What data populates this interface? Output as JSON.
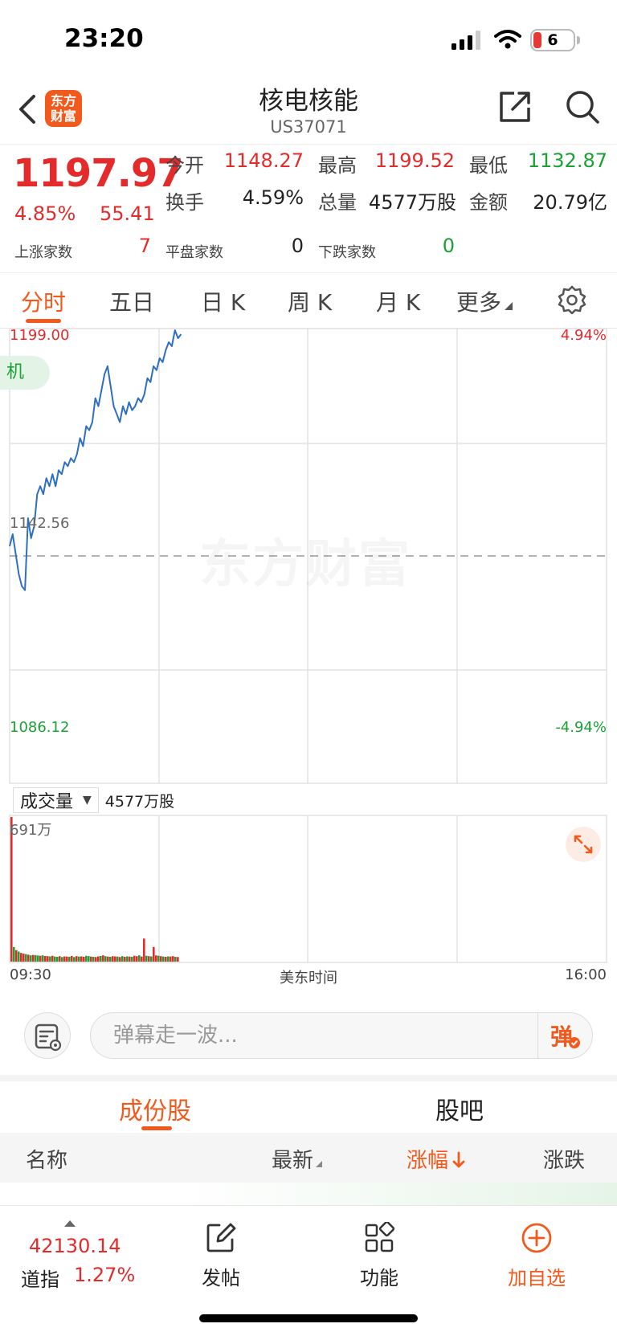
{
  "status_bar": {
    "time": "23:20",
    "battery": "6"
  },
  "header": {
    "title": "核电核能",
    "code": "US37071",
    "logo_text": "东方财富"
  },
  "quote": {
    "price": "1197.97",
    "change_pct": "4.85%",
    "change": "55.41",
    "open_label": "今开",
    "open": "1148.27",
    "high_label": "最高",
    "high": "1199.52",
    "low_label": "最低",
    "low": "1132.87",
    "turnover_label": "换手",
    "turnover": "4.59%",
    "volume_label": "总量",
    "volume": "4577万股",
    "amount_label": "金额",
    "amount": "20.79亿",
    "up_label": "上涨家数",
    "up": "7",
    "flat_label": "平盘家数",
    "flat": "0",
    "down_label": "下跌家数",
    "down": "0"
  },
  "tabs": [
    {
      "label": "分时",
      "active": true
    },
    {
      "label": "五日"
    },
    {
      "label": "日 K"
    },
    {
      "label": "周 K"
    },
    {
      "label": "月 K"
    },
    {
      "label": "更多"
    }
  ],
  "chart_data": {
    "type": "line",
    "x_start_label": "09:30",
    "x_center_label": "美东时间",
    "x_end_label": "16:00",
    "y_top_label": "1199.00",
    "y_mid_label": "1142.56",
    "y_bottom_label": "1086.12",
    "pct_top_label": "4.94%",
    "pct_bottom_label": "-4.94%",
    "ylim": [
      1086.12,
      1199.0
    ],
    "baseline": 1142.56,
    "session_minutes": 390,
    "grid": true,
    "pill_text": "机",
    "watermark": "东方财富",
    "series": [
      {
        "x": [
          0,
          2,
          4,
          6,
          8,
          10,
          12,
          14,
          16,
          18,
          20,
          22,
          24,
          26,
          28,
          30,
          32,
          34,
          36,
          38,
          40,
          42,
          44,
          46,
          48,
          50,
          52,
          54,
          56,
          58,
          60,
          62,
          64,
          66,
          68,
          70,
          72,
          74,
          76,
          78,
          80,
          82,
          84,
          86,
          88,
          90,
          92,
          94,
          96,
          98,
          100,
          102,
          104,
          106,
          108,
          110,
          112
        ],
        "values": [
          1145,
          1148,
          1143,
          1138,
          1135,
          1134,
          1152,
          1147,
          1150,
          1158,
          1160,
          1158,
          1162,
          1160,
          1163,
          1160,
          1164,
          1163,
          1166,
          1165,
          1167,
          1166,
          1168,
          1172,
          1170,
          1175,
          1174,
          1176,
          1182,
          1180,
          1184,
          1188,
          1190,
          1185,
          1180,
          1178,
          1176,
          1180,
          1178,
          1181,
          1179,
          1180,
          1182,
          1181,
          1183,
          1187,
          1186,
          1190,
          1189,
          1192,
          1191,
          1194,
          1196,
          1195,
          1199,
          1197,
          1198
        ]
      }
    ],
    "volume": {
      "type": "bar",
      "title": "成交量",
      "total_label": "4577万股",
      "max_label": "691万",
      "ylim": [
        0,
        6910000
      ],
      "values": [
        6910000,
        700000,
        550000,
        480000,
        420000,
        380000,
        360000,
        330000,
        300000,
        320000,
        310000,
        290000,
        280000,
        300000,
        270000,
        260000,
        250000,
        280000,
        240000,
        230000,
        260000,
        220000,
        250000,
        240000,
        230000,
        270000,
        220000,
        260000,
        240000,
        250000,
        230000,
        280000,
        260000,
        240000,
        230000,
        220000,
        250000,
        270000,
        300000,
        260000,
        240000,
        230000,
        260000,
        250000,
        240000,
        220000,
        260000,
        230000,
        250000,
        240000,
        230000,
        280000,
        260000,
        300000,
        240000,
        1100000,
        280000,
        260000,
        250000,
        700000,
        300000,
        280000,
        260000,
        240000,
        230000,
        250000,
        240000,
        260000,
        230000,
        220000
      ],
      "colors": [
        "red",
        "green",
        "red",
        "green",
        "red",
        "red",
        "green",
        "red",
        "green",
        "red",
        "green",
        "green",
        "red",
        "green",
        "red",
        "red",
        "green",
        "red",
        "green",
        "green",
        "red",
        "green",
        "red",
        "red",
        "green",
        "red",
        "green",
        "red",
        "green",
        "red",
        "red",
        "green",
        "green",
        "red",
        "green",
        "red",
        "red",
        "green",
        "red",
        "green",
        "red",
        "green",
        "red",
        "red",
        "green",
        "red",
        "green",
        "red",
        "green",
        "red",
        "green",
        "red",
        "red",
        "green",
        "red",
        "red",
        "green",
        "red",
        "green",
        "red",
        "red",
        "green",
        "red",
        "green",
        "red",
        "green",
        "red",
        "red",
        "green",
        "red"
      ]
    }
  },
  "danmu": {
    "placeholder": "弹幕走一波...",
    "button": "弹"
  },
  "subtabs": [
    {
      "label": "成份股",
      "active": true
    },
    {
      "label": "股吧"
    }
  ],
  "table": {
    "columns": [
      "名称",
      "最新",
      "涨幅",
      "涨跌"
    ]
  },
  "bottom_bar": {
    "index_value": "42130.14",
    "index_name": "道指",
    "index_pct": "1.27%",
    "post": "发帖",
    "functions": "功能",
    "add_watch": "加自选"
  },
  "colors": {
    "up": "#e32b2b",
    "down": "#1aa235",
    "accent": "#f25a1d",
    "line": "#2f6fc0"
  }
}
